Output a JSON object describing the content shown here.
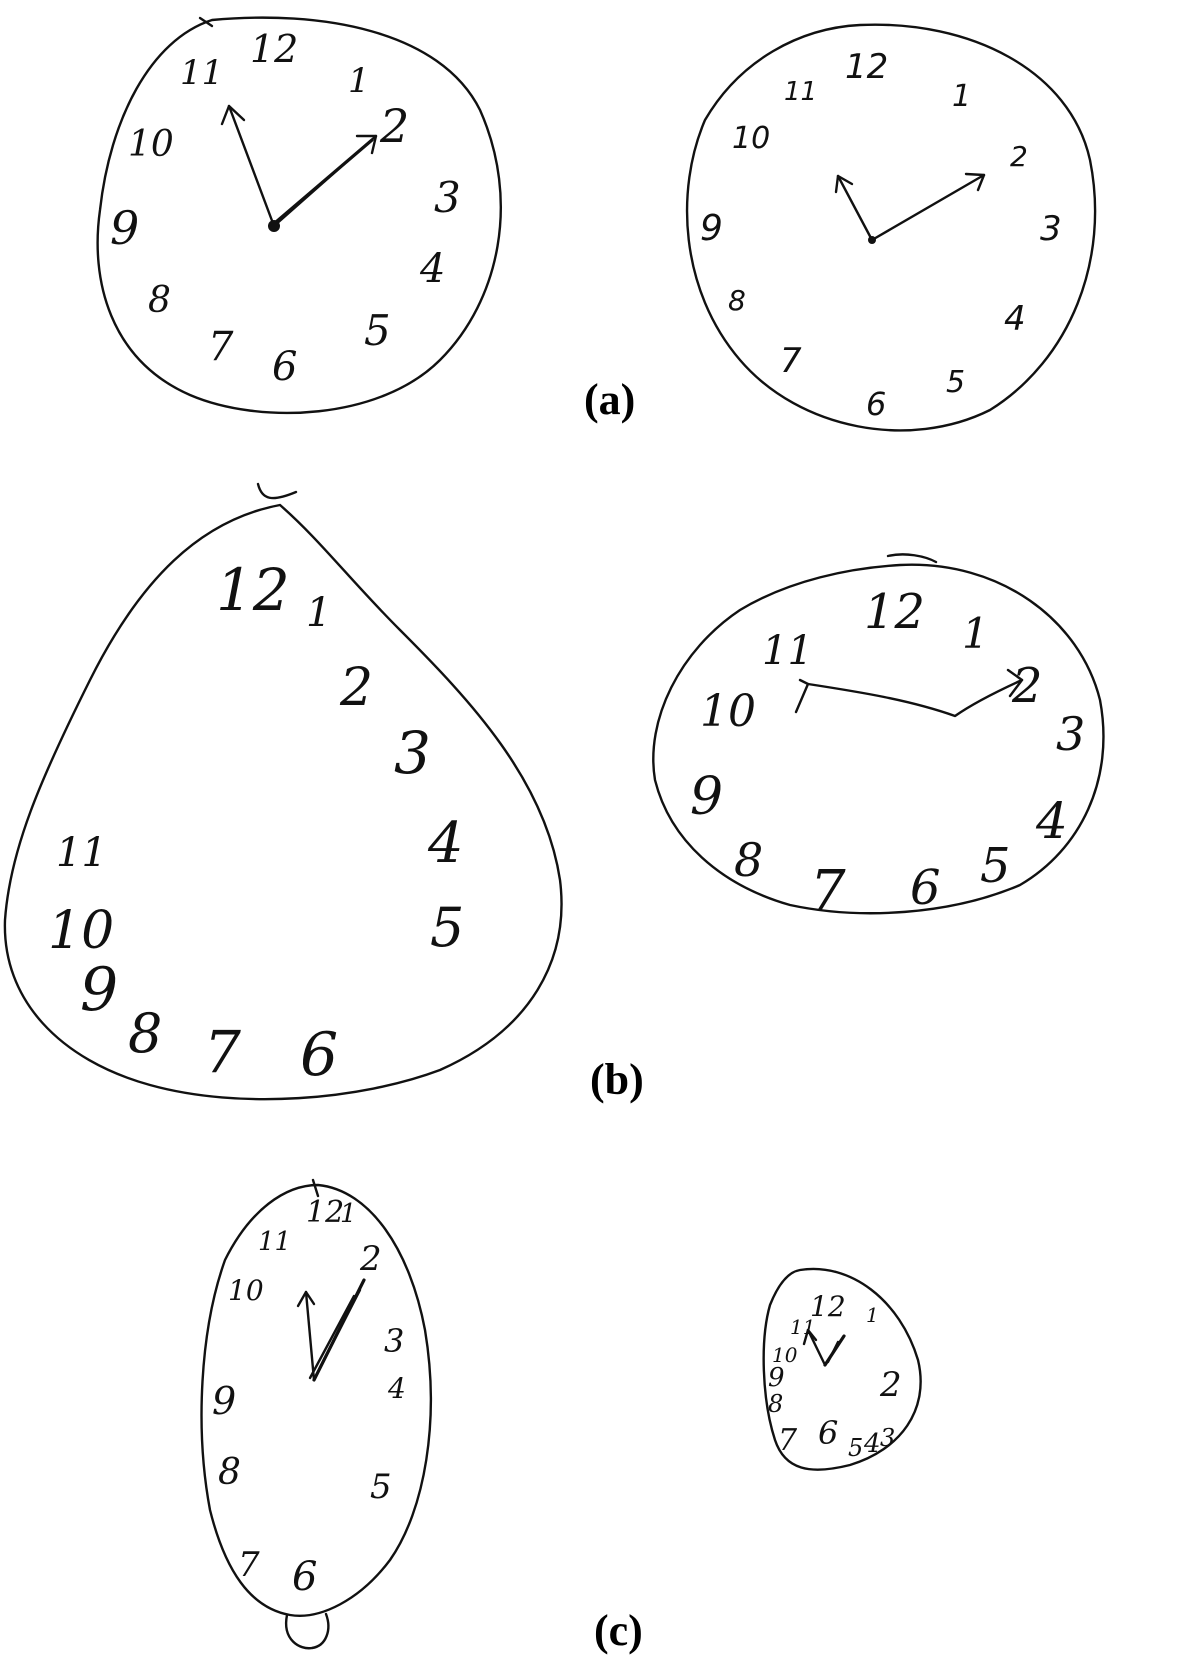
{
  "panel_labels": [
    "(a)",
    "(b)",
    "(c)"
  ],
  "clocks": [
    {
      "numerals": [
        "12",
        "1",
        "2",
        "3",
        "4",
        "5",
        "6",
        "7",
        "8",
        "9",
        "10",
        "11"
      ]
    },
    {
      "numerals": [
        "12",
        "1",
        "2",
        "3",
        "4",
        "5",
        "6",
        "7",
        "8",
        "9",
        "10",
        "11"
      ]
    },
    {
      "numerals": [
        "12",
        "1",
        "2",
        "3",
        "4",
        "5",
        "6",
        "7",
        "8",
        "9",
        "10",
        "11"
      ]
    },
    {
      "numerals": [
        "12",
        "1",
        "2",
        "3",
        "4",
        "5",
        "6",
        "7",
        "8",
        "9",
        "10",
        "11"
      ]
    },
    {
      "numerals": [
        "12",
        "1",
        "2",
        "3",
        "4",
        "5",
        "6",
        "7",
        "8",
        "9",
        "10",
        "11"
      ]
    },
    {
      "numerals": [
        "12",
        "1",
        "2",
        "3",
        "4",
        "5",
        "6",
        "7",
        "8",
        "9",
        "10",
        "11"
      ]
    }
  ]
}
